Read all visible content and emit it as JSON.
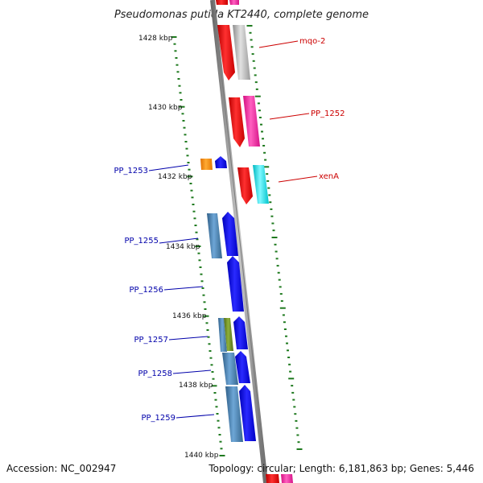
{
  "title": "Pseudomonas putida KT2440, complete genome",
  "footer": {
    "accession": "Accession: NC_002947",
    "topology": "Topology: circular; Length: 6,181,863 bp; Genes: 5,446"
  },
  "ruler_labels": [
    "1428 kbp",
    "1430 kbp",
    "1432 kbp",
    "1434 kbp",
    "1436 kbp",
    "1438 kbp",
    "1440 kbp"
  ],
  "genes_right": [
    {
      "label": "mqo-2",
      "color": "#cc0000"
    },
    {
      "label": "PP_1252",
      "color": "#cc0000"
    },
    {
      "label": "xenA",
      "color": "#cc0000"
    }
  ],
  "genes_left": [
    {
      "label": "PP_1253",
      "color": "#0000aa"
    },
    {
      "label": "PP_1255",
      "color": "#0000aa"
    },
    {
      "label": "PP_1256",
      "color": "#0000aa"
    },
    {
      "label": "PP_1257",
      "color": "#0000aa"
    },
    {
      "label": "PP_1258",
      "color": "#0000aa"
    },
    {
      "label": "PP_1259",
      "color": "#0000aa"
    }
  ],
  "colors": {
    "backbone": "#888888",
    "tick": "#1f7a1f",
    "red": "#ee1111",
    "silver": "#bdbdbd",
    "pink": "#ff2aa0",
    "cyan": "#11e6ee",
    "orange": "#ff8c00",
    "blue": "#0a0aee",
    "steel": "#4682b4",
    "olive": "#6b8e23"
  }
}
